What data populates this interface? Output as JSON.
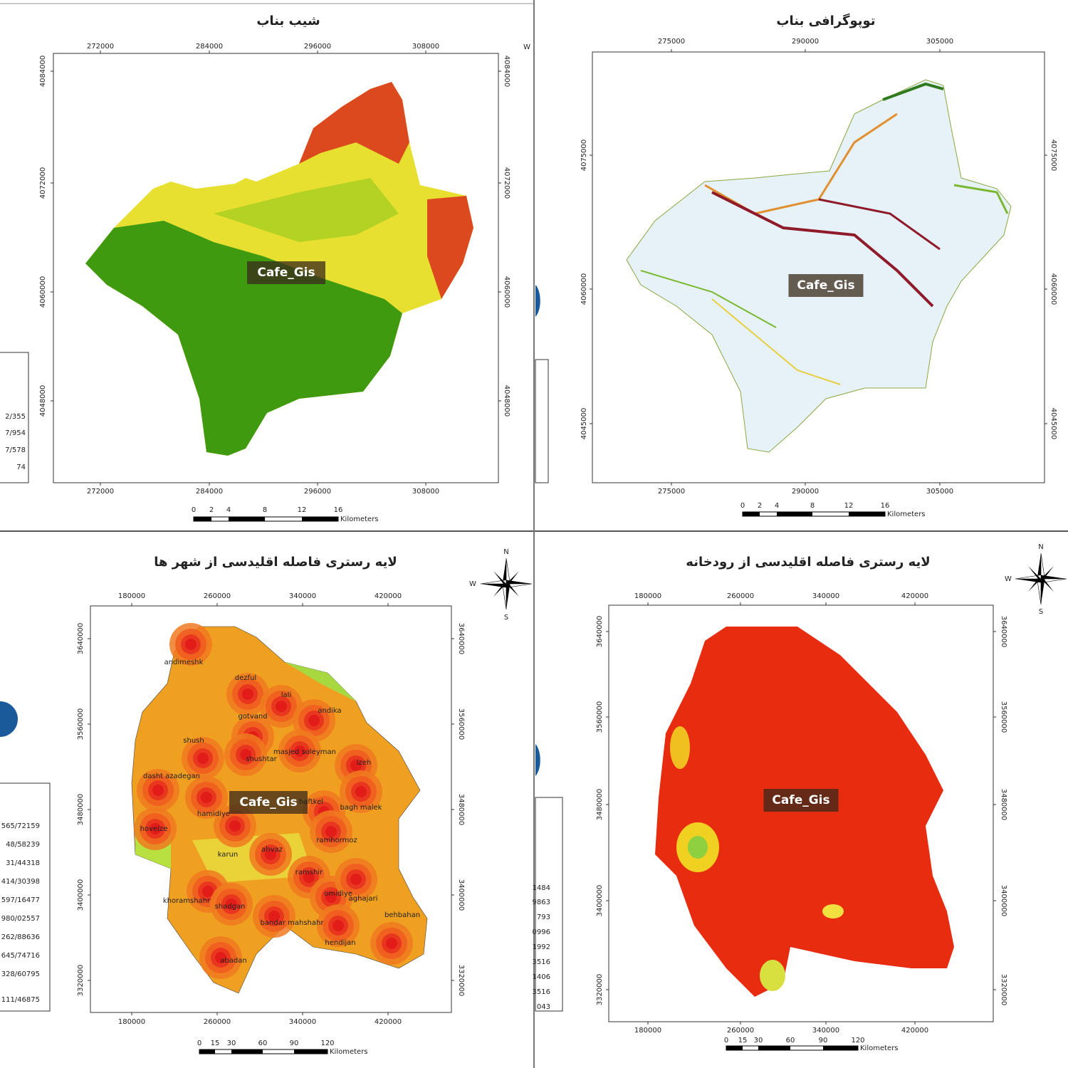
{
  "maps": [
    {
      "title": "شیب بناب",
      "x_labels": [
        "272000",
        "284000",
        "296000",
        "308000"
      ],
      "y_labels": [
        "4084000",
        "4072000",
        "4060000",
        "4048000"
      ],
      "legend": [
        "2/355",
        "7/954",
        "7/578",
        "74"
      ],
      "scale_labels": [
        "0",
        "2",
        "4",
        "8",
        "12",
        "16"
      ],
      "scale_unit": "Kilometers",
      "watermark": "Cafe_Gis",
      "compass": [
        "W"
      ]
    },
    {
      "title": "توپوگرافی بناب",
      "x_labels": [
        "275000",
        "290000",
        "305000"
      ],
      "y_labels": [
        "4075000",
        "4060000",
        "4045000"
      ],
      "scale_labels": [
        "0",
        "2",
        "4",
        "8",
        "12",
        "16"
      ],
      "scale_unit": "Kilometers",
      "watermark": "Cafe_Gis"
    },
    {
      "title": "لایه رستری فاصله اقلیدسی از شهر ها",
      "x_labels": [
        "180000",
        "260000",
        "340000",
        "420000"
      ],
      "y_labels": [
        "3640000",
        "3560000",
        "3480000",
        "3400000",
        "3320000"
      ],
      "legend": [
        "565/72159",
        "48/58239",
        "31/44318",
        "414/30398",
        "597/16477",
        "980/02557",
        "262/88636",
        "645/74716",
        "328/60795",
        "111/46875"
      ],
      "scale_labels": [
        "0",
        "15",
        "30",
        "60",
        "90",
        "120"
      ],
      "scale_unit": "Kilometers",
      "watermark": "Cafe_Gis",
      "compass": [
        "N",
        "S",
        "W"
      ],
      "cities": [
        "andimeshk",
        "dezful",
        "lali",
        "gotvand",
        "andika",
        "shush",
        "masjed soleyman",
        "shushtar",
        "izeh",
        "dasht azadegan",
        "hamidiye",
        "haftkel",
        "bagh malek",
        "hoveize",
        "ramhormoz",
        "karun",
        "ahvaz",
        "ramshir",
        "khoramshahr",
        "shadgan",
        "omidiye",
        "aghajari",
        "behbahan",
        "bandar mahshahr",
        "hendijan",
        "abadan"
      ]
    },
    {
      "title": "لایه رستری فاصله اقلیدسی از رودخانه",
      "x_labels": [
        "180000",
        "260000",
        "340000",
        "420000"
      ],
      "y_labels": [
        "3640000",
        "3560000",
        "3480000",
        "3400000",
        "3320000"
      ],
      "legend": [
        "1484",
        "9863",
        "793",
        "0996",
        "1992",
        "3516",
        "1406",
        "3516",
        "043"
      ],
      "scale_labels": [
        "0",
        "15",
        "30",
        "60",
        "90",
        "120"
      ],
      "scale_unit": "Kilometers",
      "watermark": "Cafe_Gis",
      "compass": [
        "N",
        "S",
        "W"
      ]
    }
  ]
}
